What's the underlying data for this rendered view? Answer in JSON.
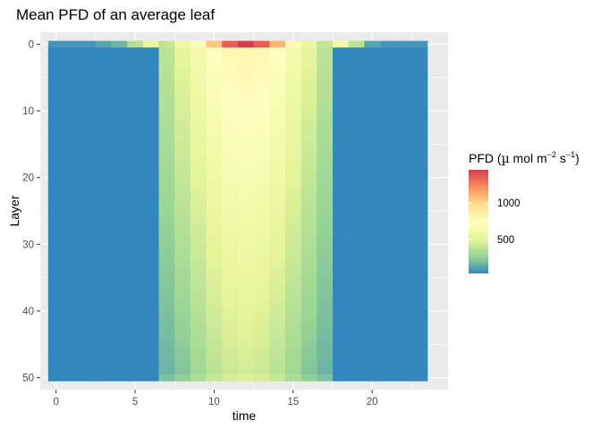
{
  "chart_data": {
    "type": "heatmap",
    "title": "Mean PFD of an average leaf",
    "xlabel": "time",
    "ylabel": "Layer",
    "x": [
      0,
      1,
      2,
      3,
      4,
      5,
      6,
      7,
      8,
      9,
      10,
      11,
      12,
      13,
      14,
      15,
      16,
      17,
      18,
      19,
      20,
      21,
      22,
      23
    ],
    "layers": 50,
    "xlim": [
      -1,
      24.8
    ],
    "ylim": [
      51.8,
      -1.8
    ],
    "y_reversed": true,
    "x_ticks": [
      0,
      5,
      10,
      15,
      20
    ],
    "x_tick_labels": [
      "0",
      "5",
      "10",
      "15",
      "20"
    ],
    "y_ticks": [
      0,
      10,
      20,
      30,
      40,
      50
    ],
    "y_tick_labels": [
      "0",
      "10",
      "20",
      "30",
      "40",
      "50"
    ],
    "top_layer_pfd": [
      80,
      80,
      80,
      130,
      180,
      350,
      550,
      400,
      600,
      720,
      1050,
      1350,
      1450,
      1350,
      1100,
      780,
      550,
      400,
      630,
      380,
      130,
      80,
      80,
      80
    ],
    "lower_layer_pfd_start": [
      40,
      40,
      40,
      40,
      40,
      40,
      40,
      380,
      520,
      640,
      740,
      800,
      820,
      800,
      740,
      640,
      520,
      380,
      40,
      40,
      40,
      40,
      40,
      40
    ],
    "lower_layer_pfd_end": [
      40,
      40,
      40,
      40,
      40,
      40,
      40,
      170,
      220,
      290,
      370,
      420,
      440,
      420,
      370,
      290,
      220,
      170,
      40,
      40,
      40,
      40,
      40,
      40
    ],
    "grid": true,
    "legend": {
      "title_main": "PFD (",
      "title_mu": "µ",
      "title_mol": " mol m",
      "title_exp1": "−2",
      "title_s": " s",
      "title_exp2": "−1",
      "title_close": ")",
      "range": [
        40,
        1450
      ],
      "breaks": [
        500,
        1000
      ],
      "break_labels": [
        "500",
        "1000"
      ],
      "palette": "Spectral",
      "placement": "right"
    },
    "colors": {
      "panel_background": "#ebebeb",
      "grid_major": "#ffffff",
      "palette_stops": [
        "#3288bd",
        "#99d594",
        "#e6f598",
        "#ffffbf",
        "#fee08b",
        "#fc8d59",
        "#d53e4f"
      ]
    }
  }
}
